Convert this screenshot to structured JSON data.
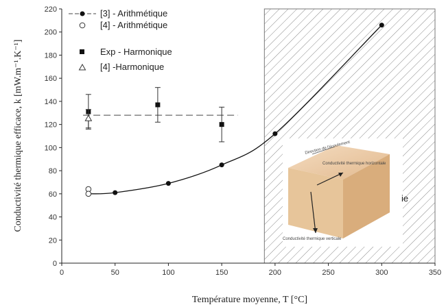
{
  "chart_data": {
    "type": "scatter",
    "xlabel": "Température moyenne, T [°C]",
    "ylabel": "Conductivité thermique efficace, k [mW.m⁻¹.K⁻¹]",
    "xlim": [
      0,
      350
    ],
    "ylim": [
      0,
      220
    ],
    "xticks": [
      "0",
      "50",
      "100",
      "150",
      "200",
      "250",
      "300",
      "350"
    ],
    "yticks": [
      "0",
      "20",
      "40",
      "60",
      "80",
      "100",
      "120",
      "140",
      "160",
      "180",
      "200",
      "220"
    ],
    "grid": false,
    "legend_position": "top-left",
    "hatched_region_x": [
      190,
      350
    ],
    "dashed_reference_y": 128,
    "series": [
      {
        "name": "[3] - Arithmétique",
        "marker": "filled-circle",
        "line": "solid",
        "points": [
          [
            25,
            60
          ],
          [
            50,
            61
          ],
          [
            100,
            69
          ],
          [
            150,
            85
          ],
          [
            200,
            112
          ],
          [
            300,
            206
          ]
        ]
      },
      {
        "name": "[4] - Arithmétique",
        "marker": "open-circle",
        "points": [
          [
            25,
            64
          ],
          [
            25,
            60
          ]
        ]
      },
      {
        "name": "Exp - Harmonique",
        "marker": "filled-square",
        "points": [
          [
            25,
            131
          ],
          [
            90,
            137
          ],
          [
            150,
            120
          ]
        ],
        "errors": [
          15,
          15,
          15
        ]
      },
      {
        "name": "[4] -Harmonique",
        "marker": "open-triangle",
        "points": [
          [
            25,
            125
          ]
        ],
        "errors": [
          8
        ]
      }
    ],
    "inset_labels": [
      "Direction de l'écoulement",
      "Conductivité thermique horizontale",
      "Conductivité thermique verticale"
    ],
    "side_text": "ie",
    "colors": {
      "axis": "#222222",
      "marker": "#111111",
      "hatch": "#8a8a8a",
      "block": "#e9c9a0"
    }
  }
}
